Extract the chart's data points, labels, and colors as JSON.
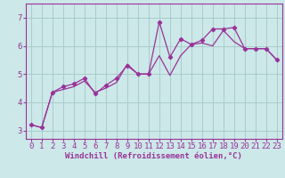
{
  "bg_color": "#cce8e8",
  "grid_color": "#aacccc",
  "line_color": "#993399",
  "marker_color": "#993399",
  "xlabel": "Windchill (Refroidissement éolien,°C)",
  "xlim": [
    -0.5,
    23.5
  ],
  "ylim": [
    2.7,
    7.5
  ],
  "yticks": [
    3,
    4,
    5,
    6,
    7
  ],
  "xticks": [
    0,
    1,
    2,
    3,
    4,
    5,
    6,
    7,
    8,
    9,
    10,
    11,
    12,
    13,
    14,
    15,
    16,
    17,
    18,
    19,
    20,
    21,
    22,
    23
  ],
  "series1_x": [
    0,
    1,
    2,
    3,
    4,
    5,
    6,
    7,
    8,
    9,
    10,
    11,
    12,
    13,
    14,
    15,
    16,
    17,
    18,
    19,
    20,
    21,
    22,
    23
  ],
  "series1_y": [
    3.2,
    3.1,
    4.35,
    4.45,
    4.55,
    4.75,
    4.35,
    4.5,
    4.7,
    5.35,
    5.0,
    5.0,
    5.65,
    4.95,
    5.65,
    6.05,
    6.1,
    6.0,
    6.55,
    6.15,
    5.9,
    5.9,
    5.9,
    5.5
  ],
  "series2_x": [
    0,
    1,
    2,
    3,
    4,
    5,
    6,
    7,
    8,
    9,
    10,
    11,
    12,
    13,
    14,
    15,
    16,
    17,
    18,
    19,
    20,
    21,
    22,
    23
  ],
  "series2_y": [
    3.2,
    3.1,
    4.35,
    4.55,
    4.65,
    4.85,
    4.3,
    4.6,
    4.85,
    5.3,
    5.0,
    5.0,
    6.85,
    5.6,
    6.25,
    6.05,
    6.2,
    6.6,
    6.6,
    6.65,
    5.9,
    5.9,
    5.9,
    5.5
  ],
  "font_size_xlabel": 6.5,
  "font_size_ticks": 6.5
}
